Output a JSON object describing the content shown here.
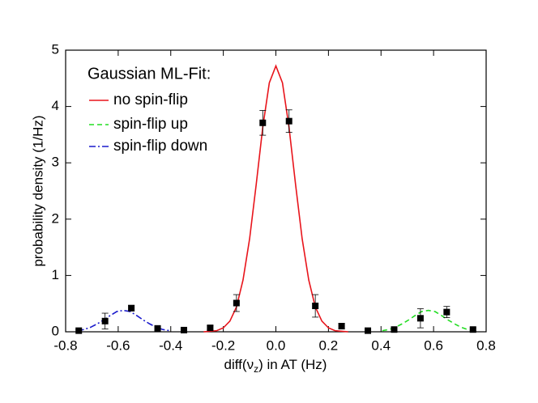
{
  "chart_data": {
    "type": "scatter",
    "x_label": [
      "diff(ν",
      "z",
      ") in AT (Hz)"
    ],
    "y_label": "probability density (1/Hz)",
    "xlim": [
      -0.8,
      0.8
    ],
    "ylim": [
      0,
      5
    ],
    "xticks": [
      -0.8,
      -0.6,
      -0.4,
      -0.2,
      {
        "value": 0,
        "label": "0.0"
      },
      0.2,
      0.4,
      0.6,
      0.8
    ],
    "yticks": [
      0,
      1,
      2,
      3,
      4,
      5
    ],
    "legend_title": "Gaussian ML-Fit:",
    "legend": "upper left",
    "points": {
      "color": "#000000",
      "x": [
        -0.75,
        -0.65,
        -0.55,
        -0.45,
        -0.35,
        -0.25,
        -0.15,
        -0.05,
        0.05,
        0.15,
        0.25,
        0.35,
        0.45,
        0.55,
        0.65,
        0.75
      ],
      "values": [
        0.02,
        0.19,
        0.42,
        0.06,
        0.03,
        0.07,
        0.51,
        3.71,
        3.74,
        0.46,
        0.1,
        0.02,
        0.04,
        0.24,
        0.35,
        0.04
      ],
      "errors": [
        0.02,
        0.14,
        0.05,
        0.04,
        0.02,
        0.04,
        0.15,
        0.22,
        0.2,
        0.2,
        0.05,
        0.02,
        0.04,
        0.17,
        0.1,
        0.03
      ]
    },
    "series": [
      {
        "name": "no spin-flip",
        "color": "#e8141b",
        "style": "solid",
        "x": [
          -0.275,
          -0.25,
          -0.225,
          -0.2,
          -0.175,
          -0.15,
          -0.125,
          -0.1,
          -0.075,
          -0.05,
          -0.025,
          0,
          0.025,
          0.05,
          0.075,
          0.1,
          0.125,
          0.15,
          0.175,
          0.2,
          0.225,
          0.25,
          0.275
        ],
        "values": [
          0,
          0.01,
          0.02,
          0.07,
          0.19,
          0.44,
          0.92,
          1.65,
          2.61,
          3.63,
          4.42,
          4.72,
          4.42,
          3.63,
          2.61,
          1.65,
          0.92,
          0.44,
          0.19,
          0.07,
          0.02,
          0.01,
          0
        ]
      },
      {
        "name": "spin-flip up",
        "color": "#22dd22",
        "style": "dashed",
        "x": [
          0.405,
          0.43,
          0.455,
          0.48,
          0.505,
          0.53,
          0.555,
          0.58,
          0.605,
          0.63,
          0.655,
          0.68,
          0.705,
          0.73,
          0.755
        ],
        "values": [
          0.02,
          0.04,
          0.08,
          0.14,
          0.21,
          0.29,
          0.36,
          0.38,
          0.36,
          0.29,
          0.21,
          0.14,
          0.08,
          0.04,
          0.02
        ]
      },
      {
        "name": "spin-flip down",
        "color": "#1a1acc",
        "style": "dashdot",
        "x": [
          -0.755,
          -0.73,
          -0.705,
          -0.68,
          -0.655,
          -0.63,
          -0.605,
          -0.58,
          -0.555,
          -0.53,
          -0.505,
          -0.48,
          -0.455,
          -0.43,
          -0.405
        ],
        "values": [
          0.02,
          0.04,
          0.08,
          0.14,
          0.21,
          0.29,
          0.36,
          0.38,
          0.36,
          0.29,
          0.21,
          0.14,
          0.08,
          0.04,
          0.02
        ]
      }
    ]
  }
}
